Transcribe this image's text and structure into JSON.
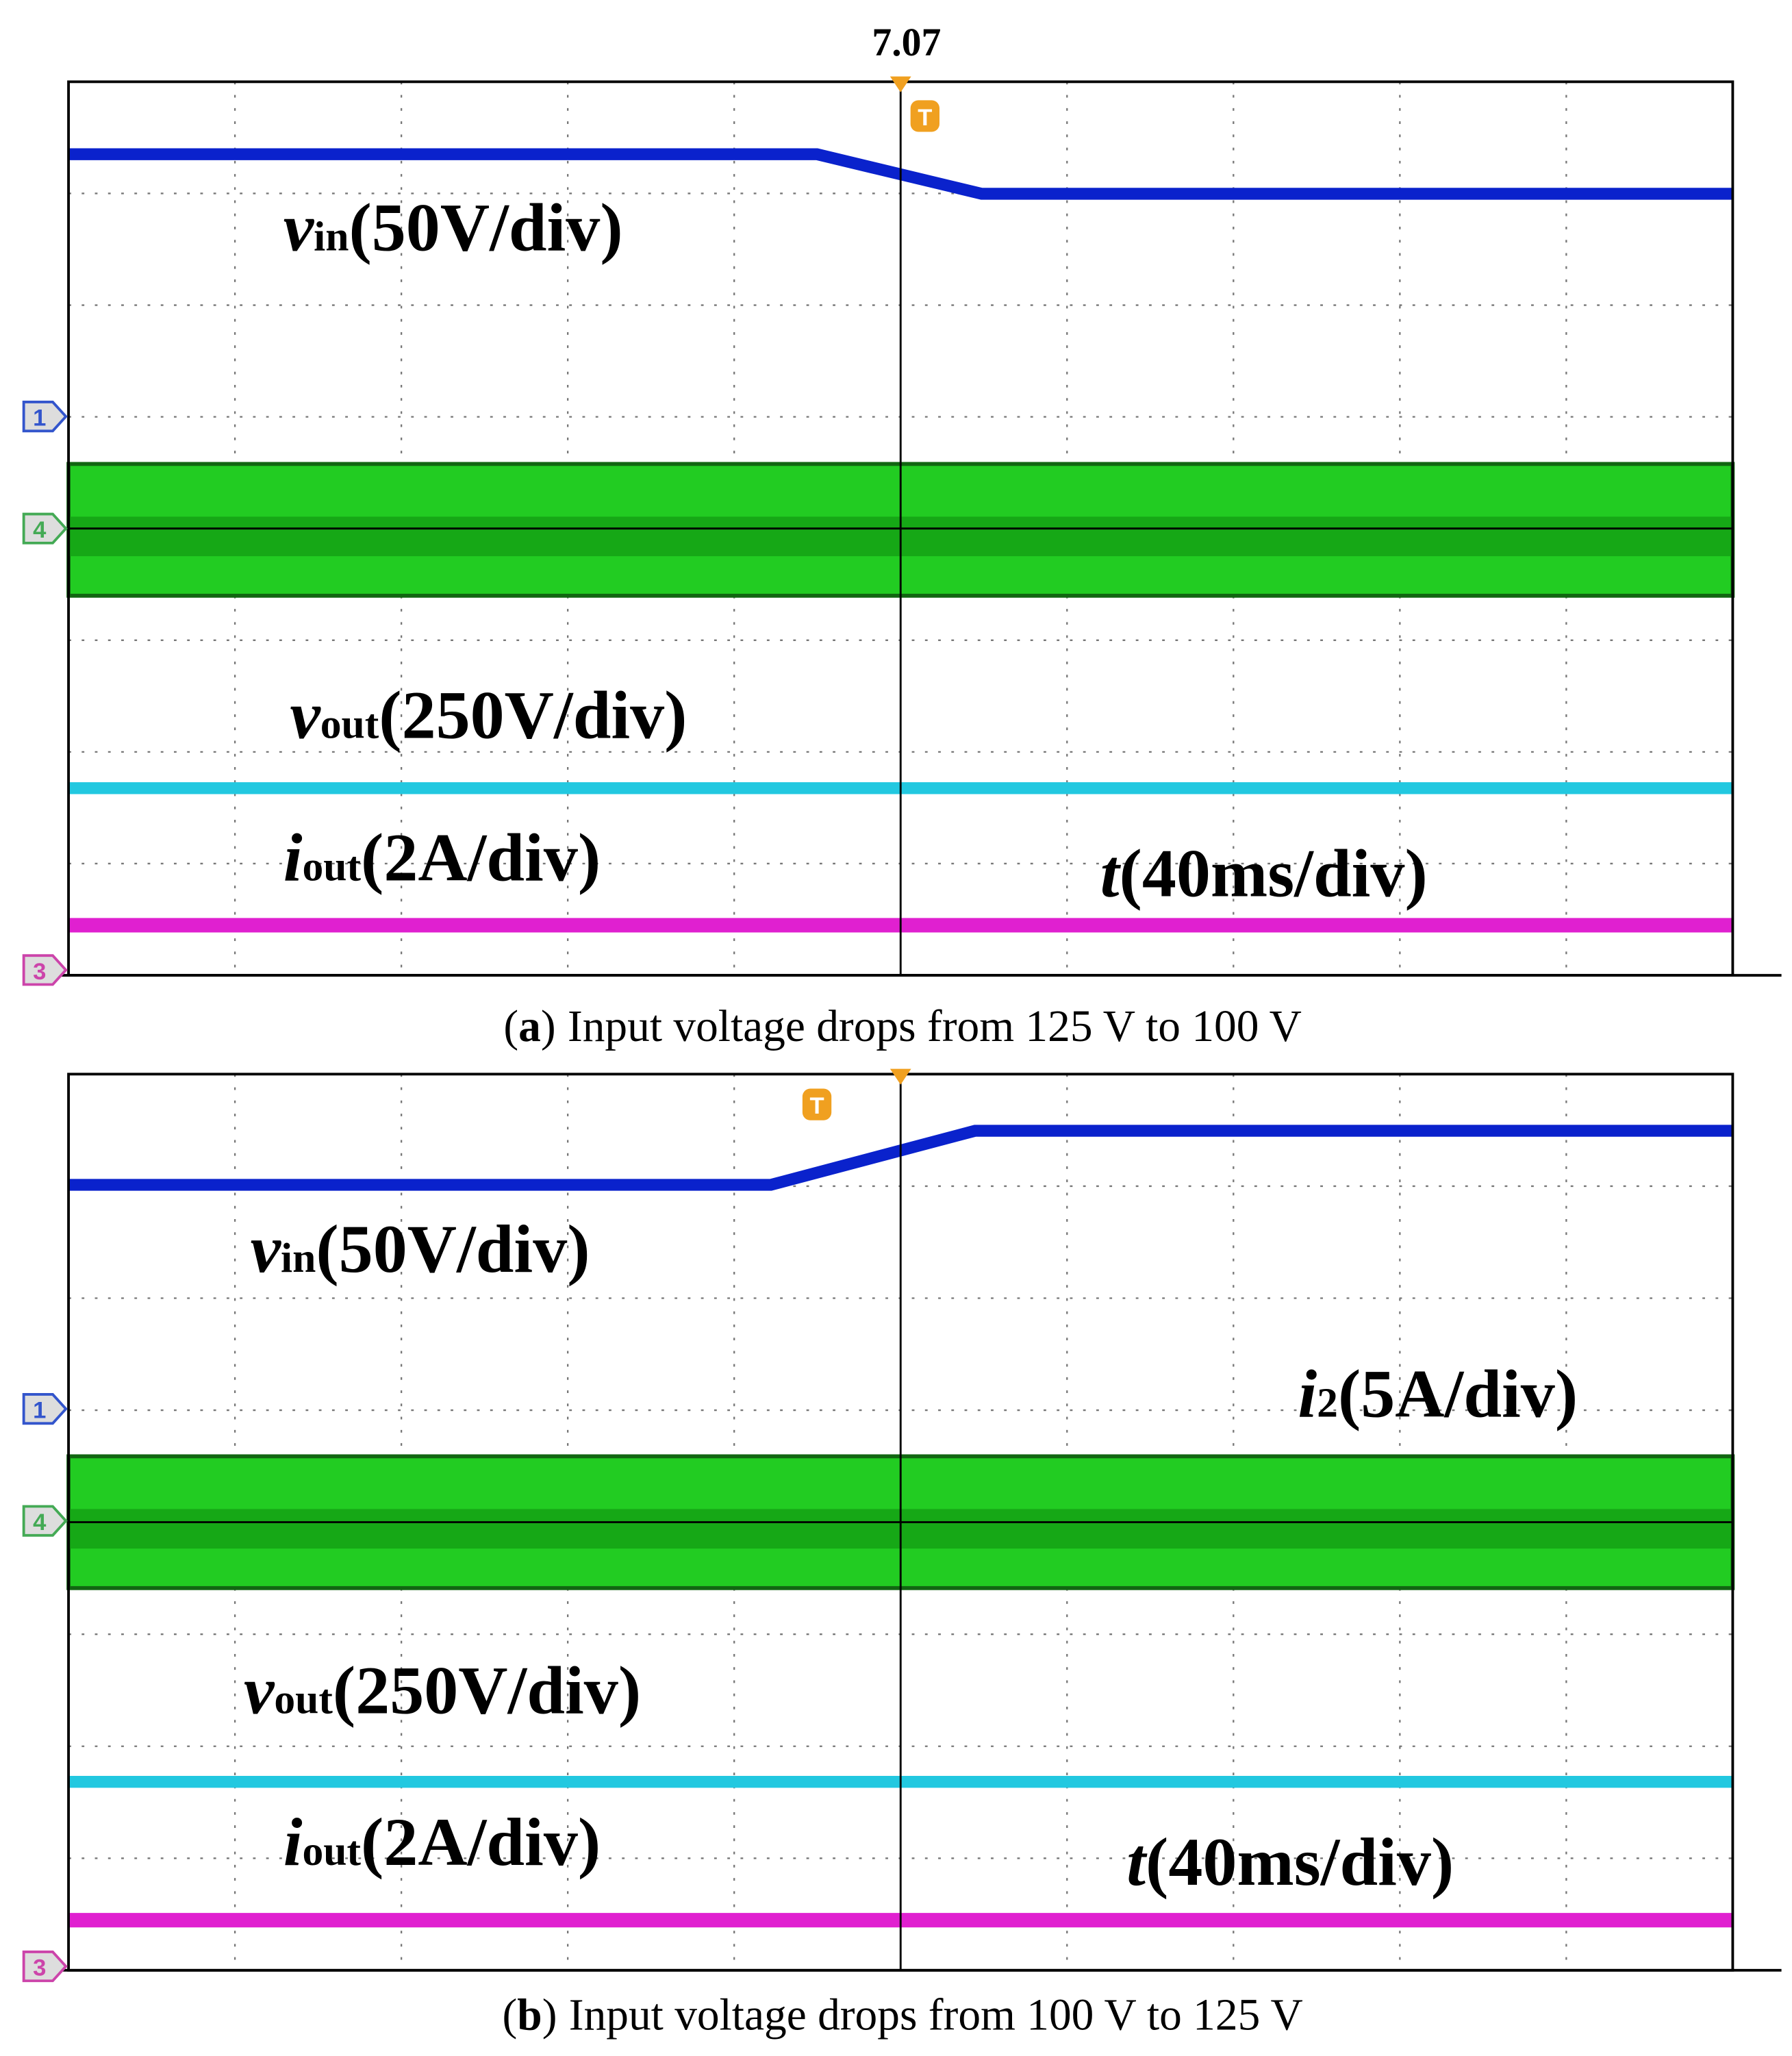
{
  "top_label": "7.07",
  "trigger": "T",
  "panels": [
    {
      "labels": [
        {
          "symbol": "v",
          "sub": "in",
          "scale": "(50V/div)"
        },
        {
          "symbol": "v",
          "sub": "out",
          "scale": "(250V/div)"
        },
        {
          "symbol": "i",
          "sub": "out",
          "scale": "(2A/div)"
        },
        {
          "symbol": "t",
          "scale": "(40ms/div)"
        }
      ],
      "channel_markers": [
        "1",
        "4",
        "3"
      ],
      "caption": {
        "open": "(",
        "letter": "a",
        "close": ")",
        "text": "Input voltage drops from 125 V to 100 V"
      }
    },
    {
      "labels": [
        {
          "symbol": "v",
          "sub": "in",
          "scale": "(50V/div)"
        },
        {
          "symbol": "i",
          "sub": "2",
          "scale": "(5A/div)"
        },
        {
          "symbol": "v",
          "sub": "out",
          "scale": "(250V/div)"
        },
        {
          "symbol": "i",
          "sub": "out",
          "scale": "(2A/div)"
        },
        {
          "symbol": "t",
          "scale": "(40ms/div)"
        }
      ],
      "channel_markers": [
        "1",
        "4",
        "3"
      ],
      "caption": {
        "open": "(",
        "letter": "b",
        "close": ")",
        "text": "Input voltage drops from 100 V to 125 V"
      }
    }
  ]
}
